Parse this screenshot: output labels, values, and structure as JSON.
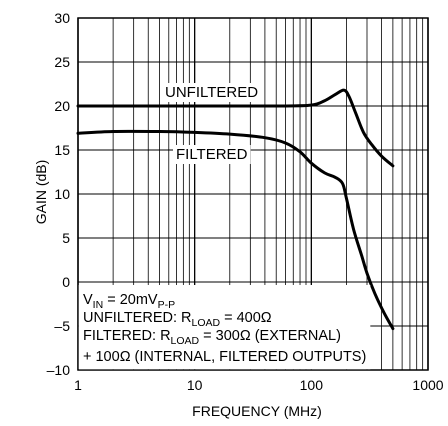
{
  "chart_data": {
    "type": "line",
    "title": "",
    "xlabel": "FREQUENCY (MHz)",
    "ylabel": "GAIN (dB)",
    "x_scale": "log",
    "xlim": [
      1,
      1000
    ],
    "ylim": [
      -10,
      30
    ],
    "x_ticks": [
      "1",
      "10",
      "100",
      "1000"
    ],
    "y_ticks": [
      "30",
      "25",
      "20",
      "15",
      "10",
      "5",
      "0",
      "–5",
      "–10"
    ],
    "grid": true,
    "series": [
      {
        "name": "UNFILTERED",
        "points": [
          [
            1,
            20.0
          ],
          [
            10,
            20.0
          ],
          [
            50,
            20.0
          ],
          [
            100,
            20.1
          ],
          [
            130,
            20.6
          ],
          [
            160,
            21.3
          ],
          [
            190,
            21.8
          ],
          [
            210,
            21.1
          ],
          [
            240,
            19.2
          ],
          [
            280,
            17.0
          ],
          [
            330,
            15.6
          ],
          [
            400,
            14.3
          ],
          [
            500,
            13.2
          ]
        ]
      },
      {
        "name": "FILTERED",
        "points": [
          [
            1,
            16.9
          ],
          [
            2,
            17.1
          ],
          [
            5,
            17.1
          ],
          [
            10,
            17.0
          ],
          [
            20,
            16.8
          ],
          [
            40,
            16.4
          ],
          [
            60,
            15.8
          ],
          [
            80,
            14.8
          ],
          [
            100,
            13.5
          ],
          [
            130,
            12.4
          ],
          [
            160,
            11.9
          ],
          [
            185,
            11.2
          ],
          [
            200,
            9.5
          ],
          [
            230,
            6.0
          ],
          [
            270,
            3.0
          ],
          [
            300,
            1.0
          ],
          [
            350,
            -1.3
          ],
          [
            420,
            -3.5
          ],
          [
            500,
            -5.3
          ]
        ]
      }
    ],
    "annotation_lines": [
      {
        "main": "V",
        "sub": "IN",
        "rest": " = 20mV",
        "sub2": "P-P",
        "rest2": ""
      },
      {
        "main": "UNFILTERED: R",
        "sub": "LOAD",
        "rest": " = 400Ω",
        "sub2": "",
        "rest2": ""
      },
      {
        "main": "FILTERED: R",
        "sub": "LOAD",
        "rest": " = 300Ω (EXTERNAL)",
        "sub2": "",
        "rest2": ""
      },
      {
        "main": "+ 100Ω (INTERNAL, FILTERED OUTPUTS)",
        "sub": "",
        "rest": "",
        "sub2": "",
        "rest2": ""
      }
    ]
  }
}
